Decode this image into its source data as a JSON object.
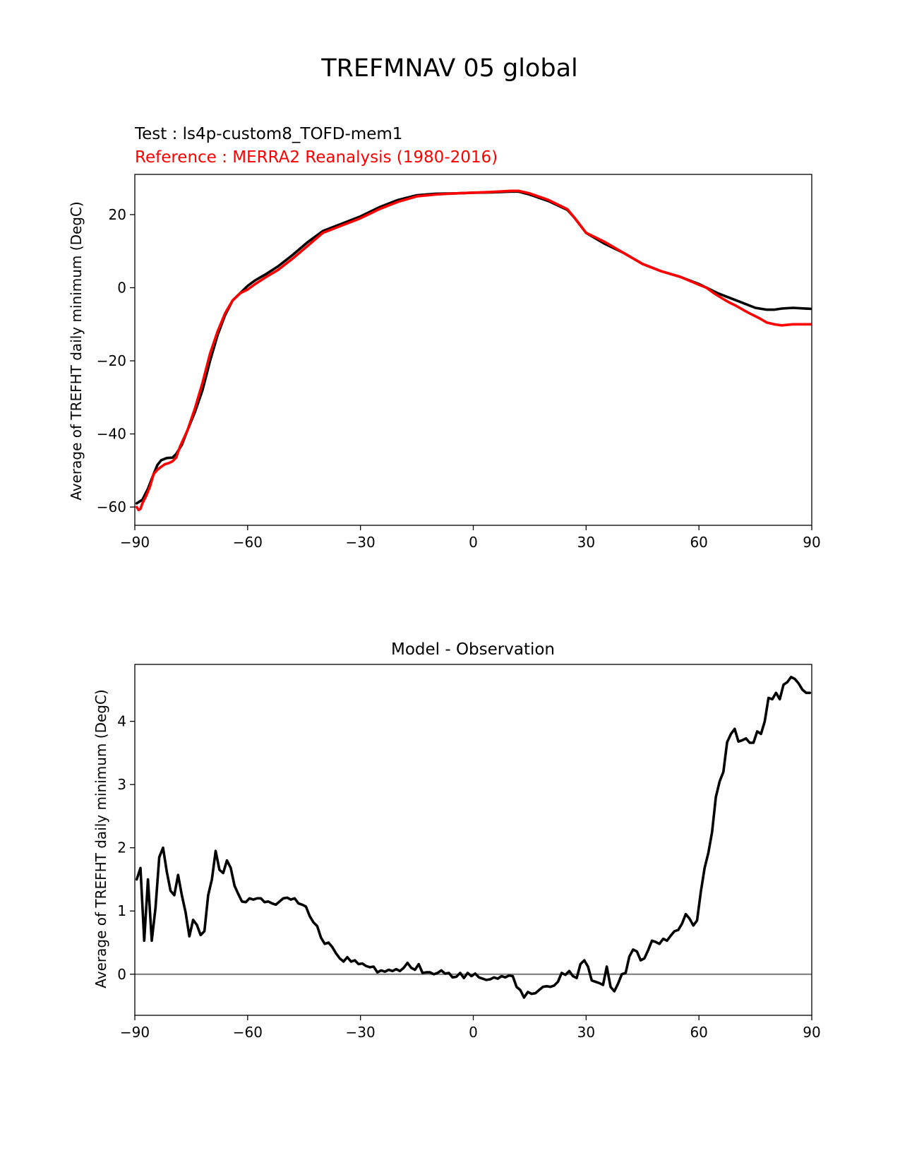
{
  "figure": {
    "title": "TREFMNAV 05 global"
  },
  "chart_data": [
    {
      "type": "line",
      "test_label": "Test : ls4p-custom8_TOFD-mem1",
      "reference_label": "Reference : MERRA2 Reanalysis (1980-2016)",
      "xlabel": "",
      "ylabel": "Average of TREFHT daily minimum (DegC)",
      "xlim": [
        -90,
        90
      ],
      "ylim": [
        -65,
        31
      ],
      "xticks": [
        -90,
        -60,
        -30,
        0,
        30,
        60,
        90
      ],
      "xtick_labels": [
        "−90",
        "−60",
        "−30",
        "0",
        "30",
        "60",
        "90"
      ],
      "yticks": [
        -60,
        -40,
        -20,
        0,
        20
      ],
      "ytick_labels": [
        "−60",
        "−40",
        "−20",
        "0",
        "20"
      ],
      "colors": {
        "test": "#000000",
        "reference": "#ff0000"
      },
      "series": [
        {
          "name": "Test",
          "color": "#000000",
          "x": [
            -89.5,
            -88,
            -86.5,
            -85,
            -84,
            -83,
            -81.5,
            -80,
            -79,
            -77.5,
            -76,
            -74,
            -72,
            -70,
            -68,
            -66,
            -64,
            -62,
            -60,
            -58,
            -55,
            -52,
            -48,
            -44,
            -40,
            -35,
            -30,
            -25,
            -20,
            -15,
            -10,
            -5,
            0,
            5,
            10,
            12,
            15,
            20,
            25,
            27,
            30,
            35,
            40,
            45,
            50,
            55,
            60,
            65,
            70,
            75,
            78,
            80,
            82,
            85,
            90
          ],
          "y": [
            -59,
            -58,
            -55,
            -51,
            -48.5,
            -47.2,
            -46.6,
            -46.5,
            -45.5,
            -43,
            -39,
            -34,
            -28,
            -20,
            -13,
            -7.5,
            -3.5,
            -1.5,
            0.5,
            2,
            3.8,
            5.8,
            9,
            12.5,
            15.5,
            17.5,
            19.5,
            22,
            24,
            25.3,
            25.7,
            25.8,
            26,
            26.1,
            26.3,
            26.3,
            25.5,
            23.7,
            21.3,
            19,
            15,
            12,
            9.5,
            6.5,
            4.5,
            3,
            1,
            -1.5,
            -3.5,
            -5.5,
            -6,
            -6,
            -5.7,
            -5.5,
            -5.8
          ]
        },
        {
          "name": "Reference",
          "color": "#ff0000",
          "x": [
            -89.5,
            -89,
            -88.5,
            -88,
            -87,
            -86,
            -85,
            -84,
            -83,
            -82,
            -81,
            -80,
            -79,
            -78,
            -76,
            -74,
            -72,
            -70,
            -68,
            -66,
            -64,
            -62,
            -60,
            -58,
            -55,
            -52,
            -48,
            -44,
            -40,
            -35,
            -30,
            -25,
            -20,
            -15,
            -10,
            -5,
            0,
            5,
            10,
            12,
            15,
            20,
            25,
            27,
            30,
            35,
            40,
            45,
            50,
            55,
            60,
            62,
            64,
            66,
            68,
            70,
            72,
            74,
            76,
            78,
            80,
            82,
            85,
            90
          ],
          "y": [
            -60,
            -60.8,
            -60.5,
            -59,
            -57,
            -54.5,
            -51,
            -49.8,
            -49,
            -48.3,
            -48,
            -47.5,
            -46.5,
            -43.5,
            -39,
            -33,
            -26,
            -18,
            -12,
            -7,
            -3.5,
            -1.5,
            -0.5,
            1,
            3,
            4.8,
            8,
            11.5,
            15,
            17,
            19,
            21.5,
            23.5,
            25,
            25.5,
            25.8,
            26,
            26.2,
            26.5,
            26.5,
            25.8,
            24,
            21.5,
            19,
            15,
            12.5,
            9.5,
            6.5,
            4.5,
            3,
            0.8,
            0,
            -1.5,
            -2.8,
            -4,
            -5,
            -6.2,
            -7.3,
            -8.3,
            -9.5,
            -10,
            -10.3,
            -10,
            -10
          ]
        }
      ]
    },
    {
      "type": "line",
      "title": "Model - Observation",
      "xlabel": "",
      "ylabel": "Average of TREFHT daily minimum (DegC)",
      "xlim": [
        -90,
        90
      ],
      "ylim": [
        -0.65,
        4.9
      ],
      "xticks": [
        -90,
        -60,
        -30,
        0,
        30,
        60,
        90
      ],
      "xtick_labels": [
        "−90",
        "−60",
        "−30",
        "0",
        "30",
        "60",
        "90"
      ],
      "yticks": [
        0,
        1,
        2,
        3,
        4
      ],
      "ytick_labels": [
        "0",
        "1",
        "2",
        "3",
        "4"
      ],
      "zero_line": {
        "y": 0,
        "color": "#808080"
      },
      "series": [
        {
          "name": "Model - Observation",
          "color": "#000000",
          "x": [
            -89.5,
            -88.5,
            -87.5,
            -86.5,
            -85.5,
            -84.5,
            -83.5,
            -82.5,
            -81.5,
            -80.5,
            -79.5,
            -78.5,
            -77.5,
            -76.5,
            -75.5,
            -74.5,
            -73.5,
            -72.5,
            -71.5,
            -70.5,
            -69.5,
            -68.5,
            -67.5,
            -66.5,
            -65.5,
            -64.5,
            -63.5,
            -62.5,
            -61.5,
            -60.5,
            -59.5,
            -58.5,
            -57.5,
            -56.5,
            -55.5,
            -54.5,
            -53.5,
            -52.5,
            -51.5,
            -50.5,
            -49.5,
            -48.5,
            -47.5,
            -46.5,
            -45.5,
            -44.5,
            -43.5,
            -42.5,
            -41.5,
            -40.5,
            -39.5,
            -38.5,
            -37.5,
            -36.5,
            -35.5,
            -34.5,
            -33.5,
            -32.5,
            -31.5,
            -30.5,
            -29.5,
            -28.5,
            -27.5,
            -26.5,
            -25.5,
            -24.5,
            -23.5,
            -22.5,
            -21.5,
            -20.5,
            -19.5,
            -18.5,
            -17.5,
            -16.5,
            -15.5,
            -14.5,
            -13.5,
            -12.5,
            -11.5,
            -10.5,
            -9.5,
            -8.5,
            -7.5,
            -6.5,
            -5.5,
            -4.5,
            -3.5,
            -2.5,
            -1.5,
            -0.5,
            0.5,
            1.5,
            2.5,
            3.5,
            4.5,
            5.5,
            6.5,
            7.5,
            8.5,
            9.5,
            10.5,
            11.5,
            12.5,
            13.5,
            14.5,
            15.5,
            16.5,
            17.5,
            18.5,
            19.5,
            20.5,
            21.5,
            22.5,
            23.5,
            24.5,
            25.5,
            26.5,
            27.5,
            28.5,
            29.5,
            30.5,
            31.5,
            32.5,
            33.5,
            34.5,
            35.5,
            36.5,
            37.5,
            38.5,
            39.5,
            40.5,
            41.5,
            42.5,
            43.5,
            44.5,
            45.5,
            46.5,
            47.5,
            48.5,
            49.5,
            50.5,
            51.5,
            52.5,
            53.5,
            54.5,
            55.5,
            56.5,
            57.5,
            58.5,
            59.5,
            60.5,
            61.5,
            62.5,
            63.5,
            64.5,
            65.5,
            66.5,
            67.5,
            68.5,
            69.5,
            70.5,
            71.5,
            72.5,
            73.5,
            74.5,
            75.5,
            76.5,
            77.5,
            78.5,
            79.5,
            80.5,
            81.5,
            82.5,
            83.5,
            84.5,
            85.5,
            86.5,
            87.5,
            88.5,
            89.5
          ],
          "y": [
            1.5,
            1.68,
            0.53,
            1.5,
            0.53,
            1.05,
            1.85,
            2.0,
            1.62,
            1.32,
            1.25,
            1.57,
            1.25,
            0.98,
            0.6,
            0.86,
            0.78,
            0.62,
            0.68,
            1.25,
            1.5,
            1.95,
            1.65,
            1.6,
            1.8,
            1.68,
            1.4,
            1.27,
            1.15,
            1.14,
            1.2,
            1.18,
            1.2,
            1.2,
            1.14,
            1.15,
            1.12,
            1.1,
            1.15,
            1.2,
            1.21,
            1.18,
            1.2,
            1.12,
            1.1,
            1.07,
            0.92,
            0.82,
            0.76,
            0.58,
            0.48,
            0.5,
            0.43,
            0.33,
            0.25,
            0.2,
            0.27,
            0.2,
            0.22,
            0.16,
            0.17,
            0.13,
            0.11,
            0.12,
            0.03,
            0.06,
            0.04,
            0.07,
            0.05,
            0.08,
            0.05,
            0.1,
            0.18,
            0.1,
            0.07,
            0.16,
            0.02,
            0.03,
            0.03,
            0.0,
            0.02,
            0.06,
            0.01,
            0.02,
            -0.05,
            -0.04,
            0.02,
            -0.06,
            0.02,
            -0.03,
            0.01,
            -0.05,
            -0.07,
            -0.09,
            -0.08,
            -0.05,
            -0.07,
            -0.03,
            -0.05,
            -0.02,
            -0.03,
            -0.2,
            -0.25,
            -0.37,
            -0.28,
            -0.31,
            -0.3,
            -0.25,
            -0.2,
            -0.19,
            -0.2,
            -0.18,
            -0.12,
            0.02,
            -0.01,
            0.05,
            -0.03,
            -0.06,
            0.16,
            0.22,
            0.12,
            -0.1,
            -0.12,
            -0.14,
            -0.17,
            0.12,
            -0.2,
            -0.27,
            -0.15,
            0.0,
            0.02,
            0.28,
            0.39,
            0.36,
            0.22,
            0.25,
            0.38,
            0.53,
            0.51,
            0.48,
            0.56,
            0.53,
            0.61,
            0.68,
            0.7,
            0.8,
            0.95,
            0.88,
            0.77,
            0.85,
            1.3,
            1.68,
            1.92,
            2.25,
            2.8,
            3.05,
            3.2,
            3.67,
            3.8,
            3.88,
            3.68,
            3.7,
            3.73,
            3.66,
            3.66,
            3.84,
            3.8,
            4.0,
            4.37,
            4.35,
            4.45,
            4.35,
            4.58,
            4.62,
            4.7,
            4.67,
            4.6,
            4.5,
            4.45,
            4.45
          ]
        }
      ]
    }
  ]
}
